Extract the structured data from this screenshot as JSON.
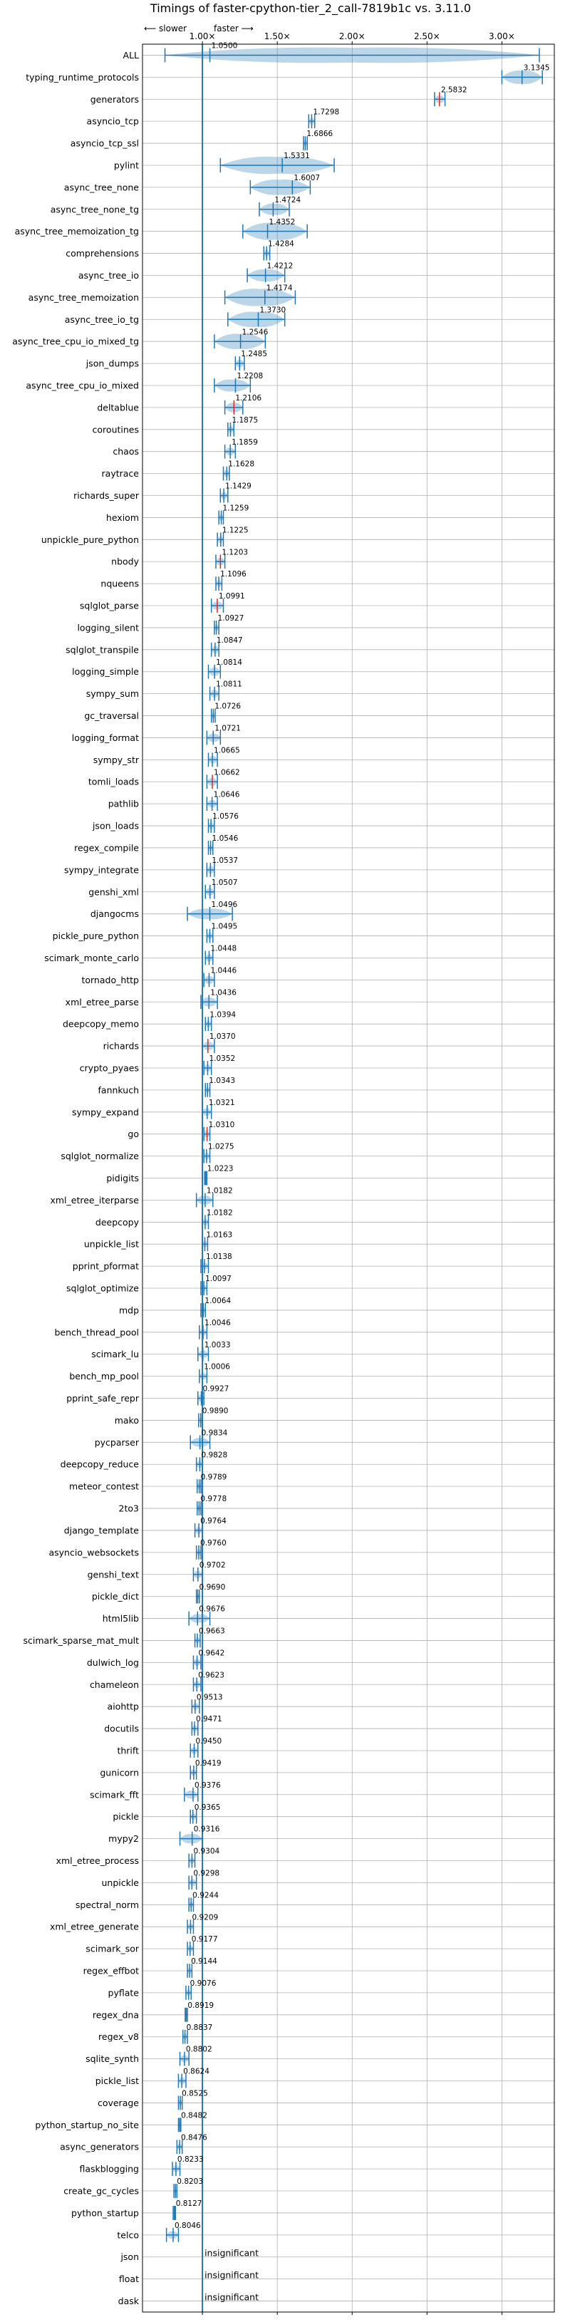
{
  "chart_data": {
    "type": "violin",
    "title": "Timings of faster-cpython-tier_2_call-7819b1c vs. 3.11.0",
    "direction_labels": {
      "slower": "⟵ slower",
      "faster": "faster ⟶"
    },
    "xlim": [
      0.6,
      3.35
    ],
    "xticks": [
      {
        "v": 1.0,
        "label": "1.00×"
      },
      {
        "v": 1.5,
        "label": "1.50×"
      },
      {
        "v": 2.0,
        "label": "2.00×"
      },
      {
        "v": 2.5,
        "label": "2.50×"
      },
      {
        "v": 3.0,
        "label": "3.00×"
      }
    ],
    "grid": true,
    "reference_line": 1.0,
    "insignificant_label": "insignificant",
    "benchmarks": [
      {
        "name": "ALL",
        "value": 1.05,
        "label": "1.0500",
        "wmin": 0.75,
        "wmax": 3.25,
        "spread": 0.15
      },
      {
        "name": "typing_runtime_protocols",
        "value": 3.1345,
        "label": "3.1345",
        "wmin": 3.0,
        "wmax": 3.27,
        "spread": 0.12
      },
      {
        "name": "generators",
        "value": 2.5832,
        "label": "2.5832",
        "wmin": 2.55,
        "wmax": 2.62,
        "spread": 0.03,
        "red": true
      },
      {
        "name": "asyncio_tcp",
        "value": 1.7298,
        "label": "1.7298",
        "wmin": 1.71,
        "wmax": 1.75,
        "spread": 0.02
      },
      {
        "name": "asyncio_tcp_ssl",
        "value": 1.6866,
        "label": "1.6866",
        "wmin": 1.675,
        "wmax": 1.7,
        "spread": 0.012
      },
      {
        "name": "pylint",
        "value": 1.5331,
        "label": "1.5331",
        "wmin": 1.12,
        "wmax": 1.88,
        "spread": 0.3
      },
      {
        "name": "async_tree_none",
        "value": 1.6007,
        "label": "1.6007",
        "wmin": 1.32,
        "wmax": 1.72,
        "spread": 0.15
      },
      {
        "name": "async_tree_none_tg",
        "value": 1.4724,
        "label": "1.4724",
        "wmin": 1.38,
        "wmax": 1.58,
        "spread": 0.09
      },
      {
        "name": "async_tree_memoization_tg",
        "value": 1.4352,
        "label": "1.4352",
        "wmin": 1.27,
        "wmax": 1.7,
        "spread": 0.18
      },
      {
        "name": "comprehensions",
        "value": 1.4284,
        "label": "1.4284",
        "wmin": 1.41,
        "wmax": 1.45,
        "spread": 0.02
      },
      {
        "name": "async_tree_io",
        "value": 1.4212,
        "label": "1.4212",
        "wmin": 1.3,
        "wmax": 1.55,
        "spread": 0.1
      },
      {
        "name": "async_tree_memoization",
        "value": 1.4174,
        "label": "1.4174",
        "wmin": 1.15,
        "wmax": 1.62,
        "spread": 0.2
      },
      {
        "name": "async_tree_io_tg",
        "value": 1.373,
        "label": "1.3730",
        "wmin": 1.17,
        "wmax": 1.55,
        "spread": 0.15
      },
      {
        "name": "async_tree_cpu_io_mixed_tg",
        "value": 1.2546,
        "label": "1.2546",
        "wmin": 1.08,
        "wmax": 1.42,
        "spread": 0.15
      },
      {
        "name": "json_dumps",
        "value": 1.2485,
        "label": "1.2485",
        "wmin": 1.22,
        "wmax": 1.28,
        "spread": 0.03
      },
      {
        "name": "async_tree_cpu_io_mixed",
        "value": 1.2208,
        "label": "1.2208",
        "wmin": 1.08,
        "wmax": 1.32,
        "spread": 0.1
      },
      {
        "name": "deltablue",
        "value": 1.2106,
        "label": "1.2106",
        "wmin": 1.15,
        "wmax": 1.27,
        "spread": 0.06,
        "red": true
      },
      {
        "name": "coroutines",
        "value": 1.1875,
        "label": "1.1875",
        "wmin": 1.17,
        "wmax": 1.21,
        "spread": 0.02
      },
      {
        "name": "chaos",
        "value": 1.1859,
        "label": "1.1859",
        "wmin": 1.15,
        "wmax": 1.22,
        "spread": 0.03
      },
      {
        "name": "raytrace",
        "value": 1.1628,
        "label": "1.1628",
        "wmin": 1.14,
        "wmax": 1.18,
        "spread": 0.02
      },
      {
        "name": "richards_super",
        "value": 1.1429,
        "label": "1.1429",
        "wmin": 1.12,
        "wmax": 1.17,
        "spread": 0.025
      },
      {
        "name": "hexiom",
        "value": 1.1259,
        "label": "1.1259",
        "wmin": 1.11,
        "wmax": 1.14,
        "spread": 0.015
      },
      {
        "name": "unpickle_pure_python",
        "value": 1.1225,
        "label": "1.1225",
        "wmin": 1.1,
        "wmax": 1.14,
        "spread": 0.02
      },
      {
        "name": "nbody",
        "value": 1.1203,
        "label": "1.1203",
        "wmin": 1.09,
        "wmax": 1.15,
        "spread": 0.03,
        "red": true
      },
      {
        "name": "nqueens",
        "value": 1.1096,
        "label": "1.1096",
        "wmin": 1.09,
        "wmax": 1.13,
        "spread": 0.02
      },
      {
        "name": "sqlglot_parse",
        "value": 1.0991,
        "label": "1.0991",
        "wmin": 1.06,
        "wmax": 1.14,
        "spread": 0.04,
        "red": true
      },
      {
        "name": "logging_silent",
        "value": 1.0927,
        "label": "1.0927",
        "wmin": 1.08,
        "wmax": 1.11,
        "spread": 0.015
      },
      {
        "name": "sqlglot_transpile",
        "value": 1.0847,
        "label": "1.0847",
        "wmin": 1.06,
        "wmax": 1.11,
        "spread": 0.025
      },
      {
        "name": "logging_simple",
        "value": 1.0814,
        "label": "1.0814",
        "wmin": 1.04,
        "wmax": 1.12,
        "spread": 0.04
      },
      {
        "name": "sympy_sum",
        "value": 1.0811,
        "label": "1.0811",
        "wmin": 1.05,
        "wmax": 1.11,
        "spread": 0.03
      },
      {
        "name": "gc_traversal",
        "value": 1.0726,
        "label": "1.0726",
        "wmin": 1.06,
        "wmax": 1.085,
        "spread": 0.01
      },
      {
        "name": "logging_format",
        "value": 1.0721,
        "label": "1.0721",
        "wmin": 1.03,
        "wmax": 1.12,
        "spread": 0.04
      },
      {
        "name": "sympy_str",
        "value": 1.0665,
        "label": "1.0665",
        "wmin": 1.04,
        "wmax": 1.1,
        "spread": 0.03
      },
      {
        "name": "tomli_loads",
        "value": 1.0662,
        "label": "1.0662",
        "wmin": 1.03,
        "wmax": 1.1,
        "spread": 0.035,
        "red": true
      },
      {
        "name": "pathlib",
        "value": 1.0646,
        "label": "1.0646",
        "wmin": 1.03,
        "wmax": 1.1,
        "spread": 0.03
      },
      {
        "name": "json_loads",
        "value": 1.0576,
        "label": "1.0576",
        "wmin": 1.04,
        "wmax": 1.08,
        "spread": 0.02
      },
      {
        "name": "regex_compile",
        "value": 1.0546,
        "label": "1.0546",
        "wmin": 1.04,
        "wmax": 1.07,
        "spread": 0.015
      },
      {
        "name": "sympy_integrate",
        "value": 1.0537,
        "label": "1.0537",
        "wmin": 1.03,
        "wmax": 1.08,
        "spread": 0.025
      },
      {
        "name": "genshi_xml",
        "value": 1.0507,
        "label": "1.0507",
        "wmin": 1.02,
        "wmax": 1.08,
        "spread": 0.03
      },
      {
        "name": "djangocms",
        "value": 1.0496,
        "label": "1.0496",
        "wmin": 0.9,
        "wmax": 1.2,
        "spread": 0.08
      },
      {
        "name": "pickle_pure_python",
        "value": 1.0495,
        "label": "1.0495",
        "wmin": 1.03,
        "wmax": 1.07,
        "spread": 0.02
      },
      {
        "name": "scimark_monte_carlo",
        "value": 1.0448,
        "label": "1.0448",
        "wmin": 1.02,
        "wmax": 1.07,
        "spread": 0.025
      },
      {
        "name": "tornado_http",
        "value": 1.0446,
        "label": "1.0446",
        "wmin": 1.01,
        "wmax": 1.08,
        "spread": 0.035
      },
      {
        "name": "xml_etree_parse",
        "value": 1.0436,
        "label": "1.0436",
        "wmin": 0.99,
        "wmax": 1.1,
        "spread": 0.05
      },
      {
        "name": "deepcopy_memo",
        "value": 1.0394,
        "label": "1.0394",
        "wmin": 1.02,
        "wmax": 1.06,
        "spread": 0.02
      },
      {
        "name": "richards",
        "value": 1.037,
        "label": "1.0370",
        "wmin": 1.0,
        "wmax": 1.08,
        "spread": 0.04,
        "red": true
      },
      {
        "name": "crypto_pyaes",
        "value": 1.0352,
        "label": "1.0352",
        "wmin": 1.01,
        "wmax": 1.06,
        "spread": 0.02
      },
      {
        "name": "fannkuch",
        "value": 1.0343,
        "label": "1.0343",
        "wmin": 1.02,
        "wmax": 1.05,
        "spread": 0.015
      },
      {
        "name": "sympy_expand",
        "value": 1.0321,
        "label": "1.0321",
        "wmin": 1.0,
        "wmax": 1.06,
        "spread": 0.03
      },
      {
        "name": "go",
        "value": 1.031,
        "label": "1.0310",
        "wmin": 1.01,
        "wmax": 1.05,
        "spread": 0.02,
        "red": true
      },
      {
        "name": "sqlglot_normalize",
        "value": 1.0275,
        "label": "1.0275",
        "wmin": 1.01,
        "wmax": 1.05,
        "spread": 0.02
      },
      {
        "name": "pidigits",
        "value": 1.0223,
        "label": "1.0223",
        "wmin": 1.015,
        "wmax": 1.03,
        "spread": 0.007
      },
      {
        "name": "xml_etree_iterparse",
        "value": 1.0182,
        "label": "1.0182",
        "wmin": 0.96,
        "wmax": 1.07,
        "spread": 0.05
      },
      {
        "name": "deepcopy",
        "value": 1.0182,
        "label": "1.0182",
        "wmin": 1.0,
        "wmax": 1.04,
        "spread": 0.02
      },
      {
        "name": "unpickle_list",
        "value": 1.0163,
        "label": "1.0163",
        "wmin": 1.0,
        "wmax": 1.035,
        "spread": 0.015
      },
      {
        "name": "pprint_pformat",
        "value": 1.0138,
        "label": "1.0138",
        "wmin": 0.99,
        "wmax": 1.04,
        "spread": 0.02
      },
      {
        "name": "sqlglot_optimize",
        "value": 1.0097,
        "label": "1.0097",
        "wmin": 0.99,
        "wmax": 1.03,
        "spread": 0.02
      },
      {
        "name": "mdp",
        "value": 1.0064,
        "label": "1.0064",
        "wmin": 0.99,
        "wmax": 1.02,
        "spread": 0.015
      },
      {
        "name": "bench_thread_pool",
        "value": 1.0046,
        "label": "1.0046",
        "wmin": 0.98,
        "wmax": 1.03,
        "spread": 0.02
      },
      {
        "name": "scimark_lu",
        "value": 1.0033,
        "label": "1.0033",
        "wmin": 0.97,
        "wmax": 1.04,
        "spread": 0.03
      },
      {
        "name": "bench_mp_pool",
        "value": 1.0006,
        "label": "1.0006",
        "wmin": 0.98,
        "wmax": 1.03,
        "spread": 0.02
      },
      {
        "name": "pprint_safe_repr",
        "value": 0.9927,
        "label": "0.9927",
        "wmin": 0.97,
        "wmax": 1.01,
        "spread": 0.02
      },
      {
        "name": "mako",
        "value": 0.989,
        "label": "0.9890",
        "wmin": 0.975,
        "wmax": 1.0,
        "spread": 0.01
      },
      {
        "name": "pycparser",
        "value": 0.9834,
        "label": "0.9834",
        "wmin": 0.92,
        "wmax": 1.05,
        "spread": 0.05
      },
      {
        "name": "deepcopy_reduce",
        "value": 0.9828,
        "label": "0.9828",
        "wmin": 0.96,
        "wmax": 1.0,
        "spread": 0.02
      },
      {
        "name": "meteor_contest",
        "value": 0.9789,
        "label": "0.9789",
        "wmin": 0.965,
        "wmax": 0.99,
        "spread": 0.01
      },
      {
        "name": "2to3",
        "value": 0.9778,
        "label": "0.9778",
        "wmin": 0.965,
        "wmax": 0.99,
        "spread": 0.01
      },
      {
        "name": "django_template",
        "value": 0.9764,
        "label": "0.9764",
        "wmin": 0.95,
        "wmax": 1.0,
        "spread": 0.02
      },
      {
        "name": "asyncio_websockets",
        "value": 0.976,
        "label": "0.9760",
        "wmin": 0.96,
        "wmax": 0.99,
        "spread": 0.015
      },
      {
        "name": "genshi_text",
        "value": 0.9702,
        "label": "0.9702",
        "wmin": 0.94,
        "wmax": 1.0,
        "spread": 0.03
      },
      {
        "name": "pickle_dict",
        "value": 0.969,
        "label": "0.9690",
        "wmin": 0.96,
        "wmax": 0.98,
        "spread": 0.01
      },
      {
        "name": "html5lib",
        "value": 0.9676,
        "label": "0.9676",
        "wmin": 0.91,
        "wmax": 1.05,
        "spread": 0.05
      },
      {
        "name": "scimark_sparse_mat_mult",
        "value": 0.9663,
        "label": "0.9663",
        "wmin": 0.95,
        "wmax": 0.985,
        "spread": 0.015
      },
      {
        "name": "dulwich_log",
        "value": 0.9642,
        "label": "0.9642",
        "wmin": 0.94,
        "wmax": 0.99,
        "spread": 0.02
      },
      {
        "name": "chameleon",
        "value": 0.9623,
        "label": "0.9623",
        "wmin": 0.94,
        "wmax": 0.99,
        "spread": 0.02
      },
      {
        "name": "aiohttp",
        "value": 0.9513,
        "label": "0.9513",
        "wmin": 0.93,
        "wmax": 0.98,
        "spread": 0.02
      },
      {
        "name": "docutils",
        "value": 0.9471,
        "label": "0.9471",
        "wmin": 0.93,
        "wmax": 0.97,
        "spread": 0.015
      },
      {
        "name": "thrift",
        "value": 0.945,
        "label": "0.9450",
        "wmin": 0.92,
        "wmax": 0.97,
        "spread": 0.02
      },
      {
        "name": "gunicorn",
        "value": 0.9419,
        "label": "0.9419",
        "wmin": 0.92,
        "wmax": 0.96,
        "spread": 0.015
      },
      {
        "name": "scimark_fft",
        "value": 0.9376,
        "label": "0.9376",
        "wmin": 0.88,
        "wmax": 0.97,
        "spread": 0.04
      },
      {
        "name": "pickle",
        "value": 0.9365,
        "label": "0.9365",
        "wmin": 0.92,
        "wmax": 0.96,
        "spread": 0.015
      },
      {
        "name": "mypy2",
        "value": 0.9316,
        "label": "0.9316",
        "wmin": 0.85,
        "wmax": 1.0,
        "spread": 0.06
      },
      {
        "name": "xml_etree_process",
        "value": 0.9304,
        "label": "0.9304",
        "wmin": 0.91,
        "wmax": 0.95,
        "spread": 0.015
      },
      {
        "name": "unpickle",
        "value": 0.9298,
        "label": "0.9298",
        "wmin": 0.91,
        "wmax": 0.96,
        "spread": 0.02
      },
      {
        "name": "spectral_norm",
        "value": 0.9244,
        "label": "0.9244",
        "wmin": 0.91,
        "wmax": 0.94,
        "spread": 0.012
      },
      {
        "name": "xml_etree_generate",
        "value": 0.9209,
        "label": "0.9209",
        "wmin": 0.9,
        "wmax": 0.94,
        "spread": 0.015
      },
      {
        "name": "scimark_sor",
        "value": 0.9177,
        "label": "0.9177",
        "wmin": 0.9,
        "wmax": 0.94,
        "spread": 0.015
      },
      {
        "name": "regex_effbot",
        "value": 0.9144,
        "label": "0.9144",
        "wmin": 0.9,
        "wmax": 0.93,
        "spread": 0.012
      },
      {
        "name": "pyflate",
        "value": 0.9076,
        "label": "0.9076",
        "wmin": 0.89,
        "wmax": 0.925,
        "spread": 0.012
      },
      {
        "name": "regex_dna",
        "value": 0.8919,
        "label": "0.8919",
        "wmin": 0.885,
        "wmax": 0.9,
        "spread": 0.006
      },
      {
        "name": "regex_v8",
        "value": 0.8837,
        "label": "0.8837",
        "wmin": 0.87,
        "wmax": 0.9,
        "spread": 0.012
      },
      {
        "name": "sqlite_synth",
        "value": 0.8802,
        "label": "0.8802",
        "wmin": 0.85,
        "wmax": 0.91,
        "spread": 0.025
      },
      {
        "name": "pickle_list",
        "value": 0.8624,
        "label": "0.8624",
        "wmin": 0.84,
        "wmax": 0.89,
        "spread": 0.02
      },
      {
        "name": "coverage",
        "value": 0.8525,
        "label": "0.8525",
        "wmin": 0.84,
        "wmax": 0.865,
        "spread": 0.01
      },
      {
        "name": "python_startup_no_site",
        "value": 0.8482,
        "label": "0.8482",
        "wmin": 0.84,
        "wmax": 0.856,
        "spread": 0.005
      },
      {
        "name": "async_generators",
        "value": 0.8476,
        "label": "0.8476",
        "wmin": 0.83,
        "wmax": 0.865,
        "spread": 0.015
      },
      {
        "name": "flaskblogging",
        "value": 0.8233,
        "label": "0.8233",
        "wmin": 0.8,
        "wmax": 0.85,
        "spread": 0.02
      },
      {
        "name": "create_gc_cycles",
        "value": 0.8203,
        "label": "0.8203",
        "wmin": 0.81,
        "wmax": 0.83,
        "spread": 0.008
      },
      {
        "name": "python_startup",
        "value": 0.8127,
        "label": "0.8127",
        "wmin": 0.805,
        "wmax": 0.82,
        "spread": 0.005
      },
      {
        "name": "telco",
        "value": 0.8046,
        "label": "0.8046",
        "wmin": 0.76,
        "wmax": 0.84,
        "spread": 0.03
      },
      {
        "name": "json",
        "insignificant": true
      },
      {
        "name": "float",
        "insignificant": true
      },
      {
        "name": "dask",
        "insignificant": true
      }
    ]
  }
}
